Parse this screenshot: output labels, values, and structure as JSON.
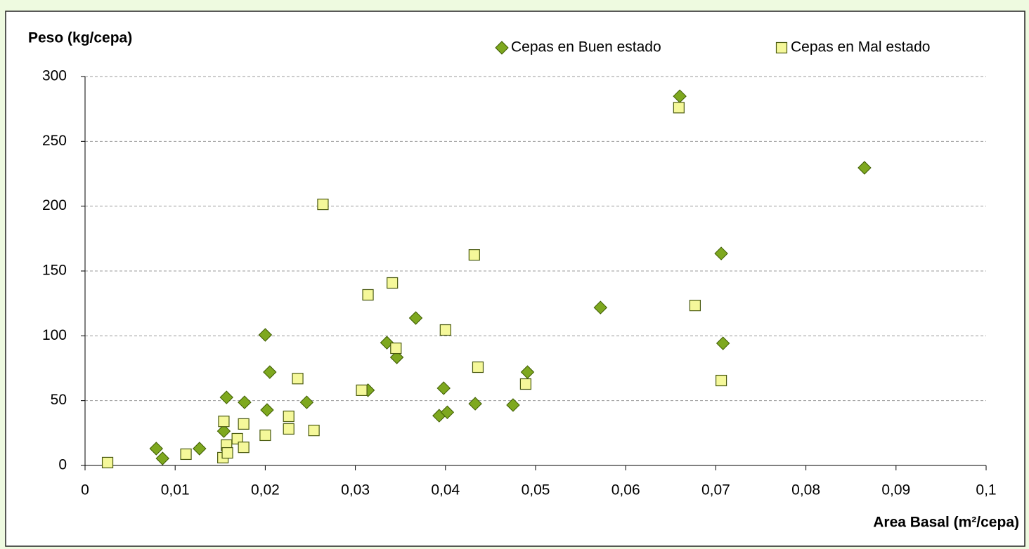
{
  "chart_data": {
    "type": "scatter",
    "ylabel": "Peso (kg/cepa)",
    "xlabel": "Area Basal (m²/cepa)",
    "xlim": [
      0,
      0.1
    ],
    "xticks": [
      0,
      {
        "value": 0.01,
        "label": "0,01"
      },
      {
        "value": 0.02,
        "label": "0,02"
      },
      {
        "value": 0.03,
        "label": "0,03"
      },
      {
        "value": 0.04,
        "label": "0,04"
      },
      {
        "value": 0.05,
        "label": "0,05"
      },
      {
        "value": 0.06,
        "label": "0,06"
      },
      {
        "value": 0.07,
        "label": "0,07"
      },
      {
        "value": 0.08,
        "label": "0,08"
      },
      {
        "value": 0.09,
        "label": "0,09"
      },
      {
        "value": 0.1,
        "label": "0,1"
      }
    ],
    "ylim": [
      0,
      300
    ],
    "yticks": [
      0,
      50,
      100,
      150,
      200,
      250,
      300
    ],
    "grid": true,
    "legend": "upper right",
    "series": [
      {
        "name": "Cepas en Buen estado",
        "color": "#7ea81f",
        "marker": "diamond",
        "x": [
          0.0079,
          0.0086,
          0.0127,
          0.0154,
          0.0157,
          0.0177,
          0.02,
          0.0202,
          0.0205,
          0.0246,
          0.0314,
          0.0335,
          0.0346,
          0.0367,
          0.0393,
          0.0398,
          0.0402,
          0.0433,
          0.0475,
          0.0491,
          0.0572,
          0.066,
          0.0706,
          0.0708,
          0.0865
        ],
        "values": [
          13,
          5.4,
          13,
          26.5,
          52.5,
          48.7,
          100.7,
          42.8,
          72,
          48.7,
          58,
          94.7,
          83.4,
          113.7,
          38.4,
          59.6,
          41,
          47.6,
          46.6,
          72,
          121.8,
          284.8,
          163.5,
          94.2,
          229.6
        ]
      },
      {
        "name": "Cepas en Mal estado",
        "color": "#f5f89a",
        "marker": "square",
        "x": [
          0.0025,
          0.0112,
          0.0154,
          0.0153,
          0.0157,
          0.0158,
          0.0169,
          0.0176,
          0.0176,
          0.02,
          0.0226,
          0.0226,
          0.0236,
          0.0254,
          0.0264,
          0.0307,
          0.0314,
          0.0341,
          0.0345,
          0.04,
          0.0432,
          0.0436,
          0.0489,
          0.0659,
          0.0677,
          0.0706
        ],
        "values": [
          2.2,
          8.7,
          34,
          6,
          15.7,
          9.7,
          20.6,
          32,
          14,
          23.3,
          37.9,
          28.2,
          67,
          27,
          201.4,
          58,
          131.6,
          140.8,
          90.4,
          104.5,
          162.4,
          75.8,
          62.8,
          276,
          123.4,
          65.5
        ]
      }
    ]
  }
}
